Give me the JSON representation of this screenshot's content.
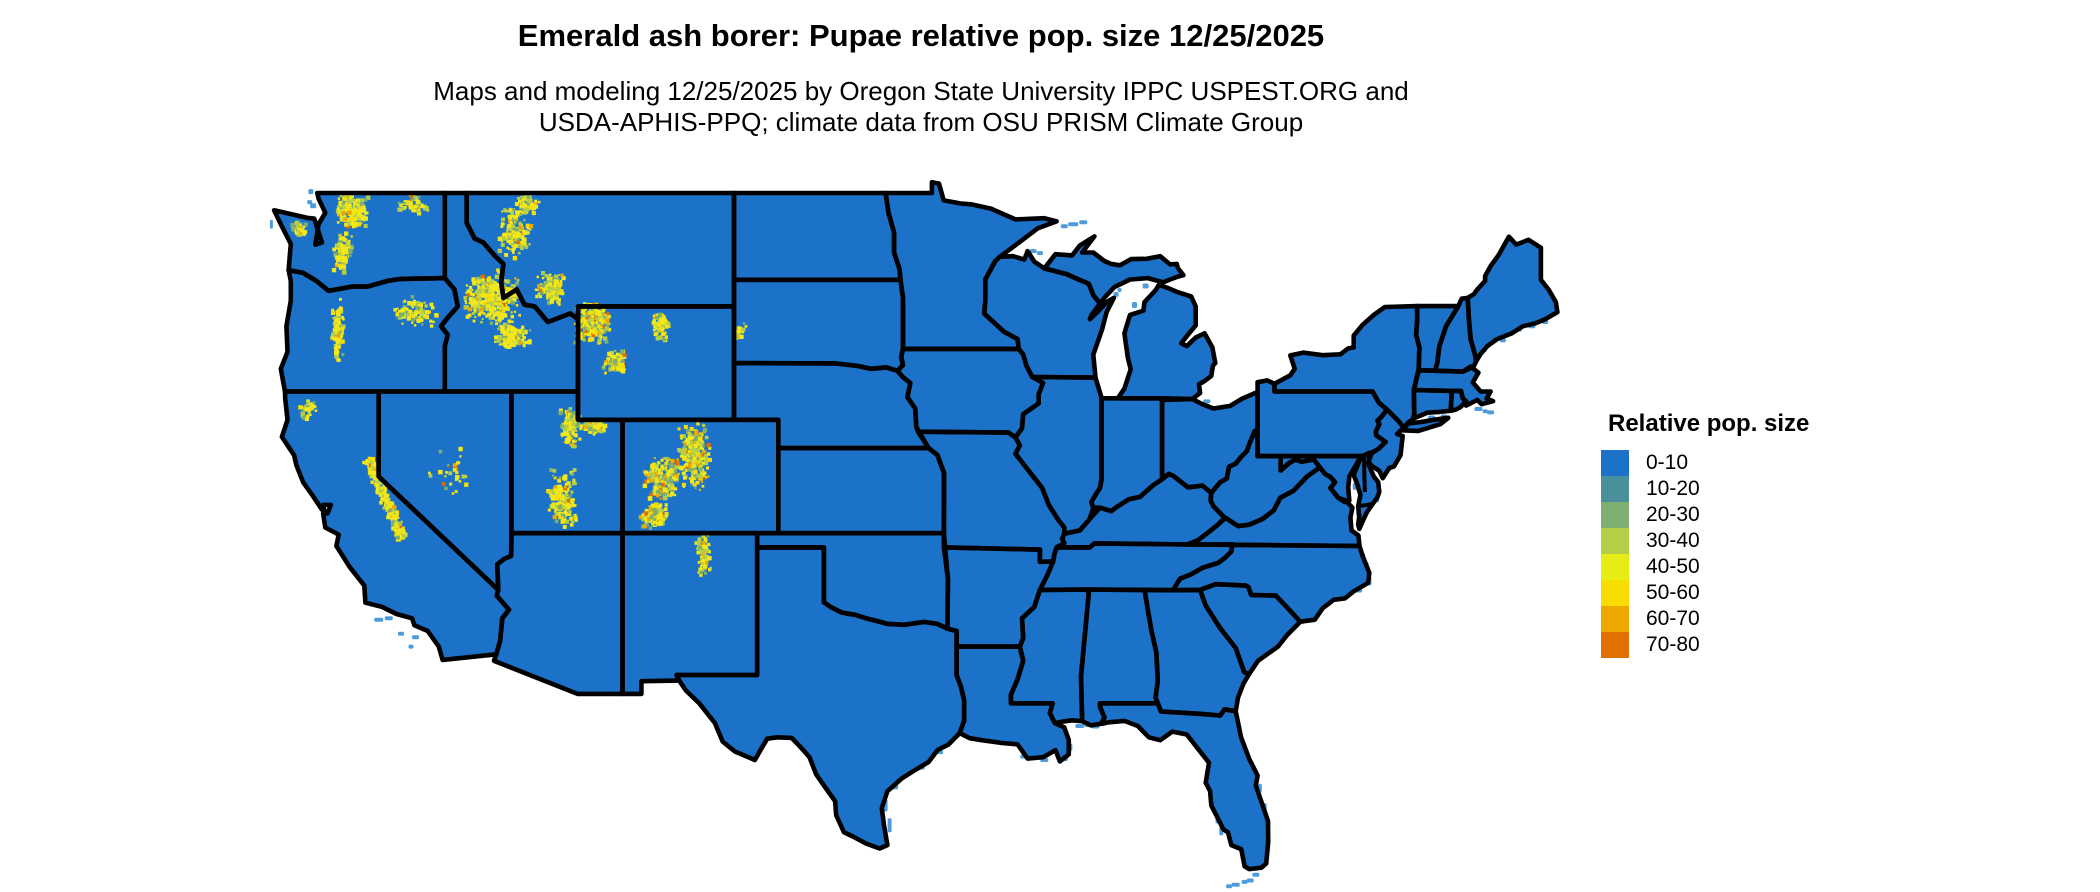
{
  "header": {
    "title": "Emerald ash borer: Pupae relative pop. size 12/25/2025",
    "subtitle_line1": "Maps and modeling 12/25/2025 by Oregon State University IPPC USPEST.ORG and",
    "subtitle_line2": "USDA-APHIS-PPQ; climate data from OSU PRISM Climate Group"
  },
  "legend": {
    "title": "Relative pop. size",
    "items": [
      {
        "label": "0-10",
        "color": "#1B72C8"
      },
      {
        "label": "10-20",
        "color": "#4A909C"
      },
      {
        "label": "20-30",
        "color": "#7DB070"
      },
      {
        "label": "30-40",
        "color": "#B5CE48"
      },
      {
        "label": "40-50",
        "color": "#E7EB16"
      },
      {
        "label": "50-60",
        "color": "#F8DE00"
      },
      {
        "label": "60-70",
        "color": "#EDA800"
      },
      {
        "label": "70-80",
        "color": "#E07000"
      }
    ]
  },
  "map": {
    "land_color": "#1B72C8",
    "border_color": "#000000",
    "coast_fringe_color": "#4E9CDC",
    "background_color": "#FFFFFF",
    "hotspots": [
      {
        "name": "wa-olympics",
        "lon": -123.55,
        "lat": 47.75,
        "rx": 0.35,
        "ry": 0.3,
        "n": 45,
        "hot": false
      },
      {
        "name": "wa-north-cascades",
        "lon": -121.2,
        "lat": 48.35,
        "rx": 0.75,
        "ry": 0.62,
        "n": 220,
        "hot": false
      },
      {
        "name": "wa-south-cascades",
        "lon": -121.6,
        "lat": 46.9,
        "rx": 0.45,
        "ry": 0.75,
        "n": 110,
        "hot": false
      },
      {
        "name": "wa-northeast",
        "lon": -118.4,
        "lat": 48.6,
        "rx": 0.8,
        "ry": 0.45,
        "n": 55,
        "hot": false
      },
      {
        "name": "or-cascades",
        "lon": -121.85,
        "lat": 44.1,
        "rx": 0.3,
        "ry": 1.25,
        "n": 110,
        "hot": false
      },
      {
        "name": "or-blue-mountains",
        "lon": -118.4,
        "lat": 44.8,
        "rx": 1.0,
        "ry": 0.6,
        "n": 95,
        "hot": false
      },
      {
        "name": "ca-klamath",
        "lon": -123.2,
        "lat": 41.4,
        "rx": 0.45,
        "ry": 0.4,
        "n": 30,
        "hot": false
      },
      {
        "name": "ca-sierra-nevada",
        "lon": -119.7,
        "lat": 38.2,
        "rx": 0.4,
        "ry": 0.5,
        "n": 230,
        "axis": [
          0.75,
          -1.3
        ],
        "hot": false
      },
      {
        "name": "nv-scattered",
        "lon": -116.8,
        "lat": 39.2,
        "rx": 1.2,
        "ry": 1.0,
        "n": 28,
        "hot": false
      },
      {
        "name": "id-central",
        "lon": -114.9,
        "lat": 45.3,
        "rx": 1.3,
        "ry": 1.0,
        "n": 360,
        "hot": false
      },
      {
        "name": "id-sawtooth",
        "lon": -114.0,
        "lat": 44.0,
        "rx": 0.9,
        "ry": 0.5,
        "n": 130,
        "hot": false
      },
      {
        "name": "mt-northwest",
        "lon": -113.9,
        "lat": 47.6,
        "rx": 0.8,
        "ry": 0.95,
        "n": 140,
        "hot": false
      },
      {
        "name": "mt-glacier",
        "lon": -113.3,
        "lat": 48.6,
        "rx": 0.55,
        "ry": 0.35,
        "n": 70,
        "hot": false
      },
      {
        "name": "mt-southwest",
        "lon": -112.3,
        "lat": 45.6,
        "rx": 0.8,
        "ry": 0.6,
        "n": 120,
        "hot": false
      },
      {
        "name": "yellowstone-absaroka",
        "lon": -110.4,
        "lat": 44.4,
        "rx": 0.85,
        "ry": 0.75,
        "n": 300,
        "hot": true
      },
      {
        "name": "wy-wind-river",
        "lon": -109.4,
        "lat": 43.0,
        "rx": 0.55,
        "ry": 0.45,
        "n": 90,
        "hot": true
      },
      {
        "name": "wy-bighorn",
        "lon": -107.3,
        "lat": 44.3,
        "rx": 0.4,
        "ry": 0.55,
        "n": 80,
        "hot": false
      },
      {
        "name": "ut-wasatch",
        "lon": -111.4,
        "lat": 40.7,
        "rx": 0.45,
        "ry": 0.8,
        "n": 130,
        "hot": false
      },
      {
        "name": "ut-uinta",
        "lon": -110.4,
        "lat": 40.75,
        "rx": 0.65,
        "ry": 0.3,
        "n": 90,
        "hot": false
      },
      {
        "name": "ut-south-plateaus",
        "lon": -111.7,
        "lat": 38.2,
        "rx": 0.7,
        "ry": 1.1,
        "n": 170,
        "hot": false
      },
      {
        "name": "co-front-range",
        "lon": -105.8,
        "lat": 39.7,
        "rx": 0.75,
        "ry": 1.25,
        "n": 280,
        "hot": true
      },
      {
        "name": "co-elk-sawatch",
        "lon": -107.3,
        "lat": 38.9,
        "rx": 0.8,
        "ry": 0.8,
        "n": 200,
        "hot": true
      },
      {
        "name": "co-san-juan",
        "lon": -107.6,
        "lat": 37.6,
        "rx": 0.7,
        "ry": 0.45,
        "n": 150,
        "hot": true
      },
      {
        "name": "nm-sangre-de-cristo",
        "lon": -105.4,
        "lat": 36.2,
        "rx": 0.35,
        "ry": 0.75,
        "n": 80,
        "hot": false
      },
      {
        "name": "sd-black-hills",
        "lon": -103.7,
        "lat": 44.1,
        "rx": 0.3,
        "ry": 0.35,
        "n": 16,
        "hot": false
      }
    ]
  }
}
